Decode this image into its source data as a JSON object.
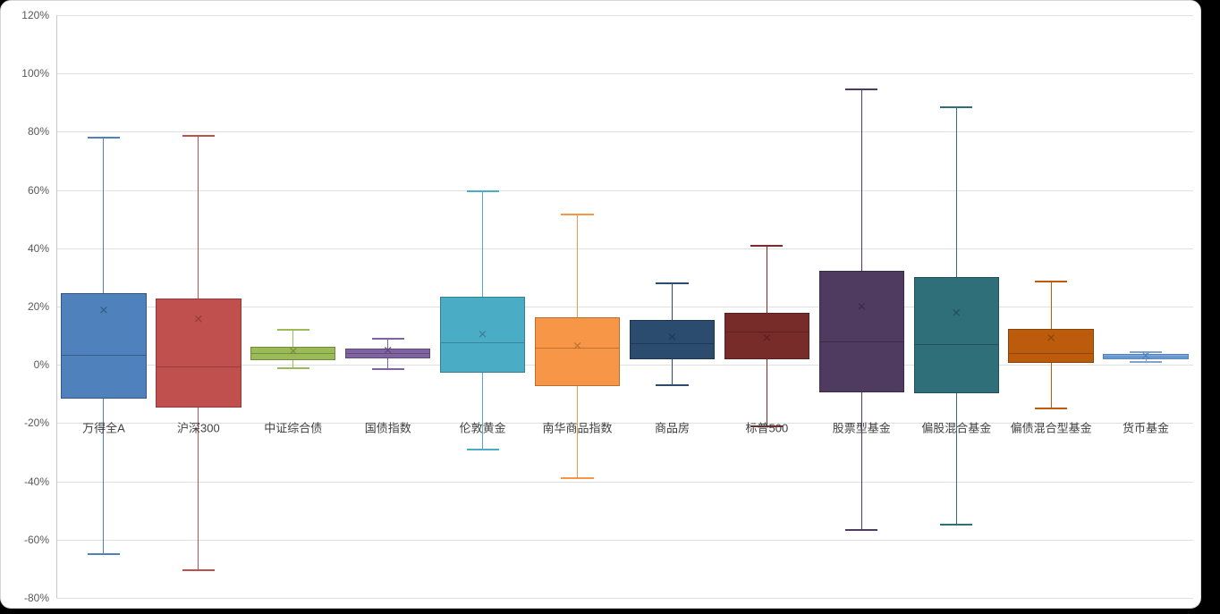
{
  "chart_data": {
    "type": "boxplot",
    "title": "",
    "xlabel": "",
    "ylabel": "",
    "grid": true,
    "y_axis": {
      "min": -80,
      "max": 120,
      "step": 20,
      "ticks": [
        {
          "value": 120,
          "label": "120%"
        },
        {
          "value": 100,
          "label": "100%"
        },
        {
          "value": 80,
          "label": "80%"
        },
        {
          "value": 60,
          "label": "60%"
        },
        {
          "value": 40,
          "label": "40%"
        },
        {
          "value": 20,
          "label": "20%"
        },
        {
          "value": 0,
          "label": "0%"
        },
        {
          "value": -20,
          "label": "-20%"
        },
        {
          "value": -40,
          "label": "-40%"
        },
        {
          "value": -60,
          "label": "-60%"
        },
        {
          "value": -80,
          "label": "-80%"
        }
      ]
    },
    "categories": [
      "万得全A",
      "沪深300",
      "中证综合债",
      "国债指数",
      "伦敦黄金",
      "南华商品指数",
      "商品房",
      "标普500",
      "股票型基金",
      "偏股混合基金",
      "偏债混合型基金",
      "货币基金"
    ],
    "series": [
      {
        "name": "万得全A",
        "fill": "#4F81BD",
        "stroke": "#35567e",
        "whisker_low": -65.0,
        "q1": -11.5,
        "median": 3.5,
        "q3": 24.5,
        "whisker_high": 78.0,
        "mean": 18.5
      },
      {
        "name": "沪深300",
        "fill": "#C0504D",
        "stroke": "#8e3a38",
        "whisker_low": -70.5,
        "q1": -14.8,
        "median": -0.5,
        "q3": 22.8,
        "whisker_high": 78.5,
        "mean": 15.5
      },
      {
        "name": "中证综合债",
        "fill": "#9BBB59",
        "stroke": "#71893f",
        "whisker_low": -1.3,
        "q1": 1.5,
        "median": 4.2,
        "q3": 6.3,
        "whisker_high": 12.0,
        "mean": 4.4
      },
      {
        "name": "国债指数",
        "fill": "#8064A2",
        "stroke": "#5c4876",
        "whisker_low": -1.4,
        "q1": 2.2,
        "median": 3.9,
        "q3": 5.5,
        "whisker_high": 8.9,
        "mean": 4.6
      },
      {
        "name": "伦敦黄金",
        "fill": "#4BACC6",
        "stroke": "#357f93",
        "whisker_low": -29.0,
        "q1": -2.8,
        "median": 7.8,
        "q3": 23.4,
        "whisker_high": 59.5,
        "mean": 10.2
      },
      {
        "name": "南华商品指数",
        "fill": "#F79646",
        "stroke": "#b96f2f",
        "whisker_low": -39.0,
        "q1": -7.3,
        "median": 5.8,
        "q3": 16.3,
        "whisker_high": 51.5,
        "mean": 6.3
      },
      {
        "name": "商品房",
        "fill": "#2B4C6F",
        "stroke": "#1d3650",
        "whisker_low": -6.9,
        "q1": 1.9,
        "median": 7.4,
        "q3": 15.5,
        "whisker_high": 27.9,
        "mean": 9.4
      },
      {
        "name": "标普500",
        "fill": "#772C2A",
        "stroke": "#571f1e",
        "whisker_low": -21.0,
        "q1": 1.8,
        "median": 11.5,
        "q3": 17.9,
        "whisker_high": 40.8,
        "mean": 9.0
      },
      {
        "name": "股票型基金",
        "fill": "#4F3A60",
        "stroke": "#382944",
        "whisker_low": -56.8,
        "q1": -9.6,
        "median": 8.1,
        "q3": 32.3,
        "whisker_high": 94.5,
        "mean": 19.8
      },
      {
        "name": "偏股混合基金",
        "fill": "#2E6F7A",
        "stroke": "#1f4f57",
        "whisker_low": -54.7,
        "q1": -9.7,
        "median": 7.1,
        "q3": 30.0,
        "whisker_high": 88.5,
        "mean": 17.6
      },
      {
        "name": "偏债混合型基金",
        "fill": "#BC5B0B",
        "stroke": "#8a4208",
        "whisker_low": -15.0,
        "q1": 0.8,
        "median": 4.1,
        "q3": 12.2,
        "whisker_high": 28.6,
        "mean": 9.1
      },
      {
        "name": "货币基金",
        "fill": "#7DA5D4",
        "stroke": "#4F81BD",
        "whisker_low": 1.0,
        "q1": 1.8,
        "median": 2.7,
        "q3": 3.7,
        "whisker_high": 4.5,
        "mean": 2.7
      }
    ],
    "legend": null,
    "mean_marker_glyph": "✕",
    "category_label_row_value": -21.5
  }
}
